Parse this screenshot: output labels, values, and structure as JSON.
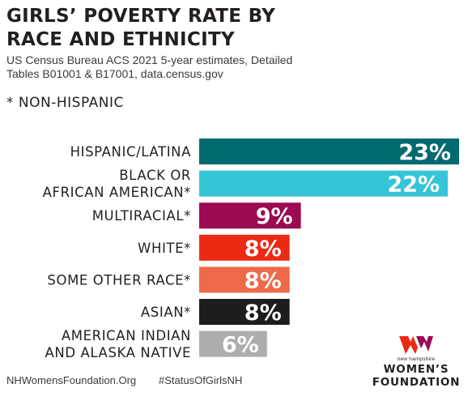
{
  "header": {
    "title_lines": [
      "GIRLS’ POVERTY RATE BY",
      "RACE AND ETHNICITY"
    ],
    "source_lines": [
      "US Census Bureau ACS 2021 5-year estimates, Detailed",
      "Tables B01001 & B17001, data.census.gov"
    ],
    "note": "* NON-HISPANIC"
  },
  "chart_data": {
    "type": "bar",
    "orientation": "horizontal",
    "title": "GIRLS’ POVERTY RATE BY RACE AND ETHNICITY",
    "subtitle": "US Census Bureau ACS 2021 5-year estimates, Detailed Tables B01001 & B17001, data.census.gov",
    "categories": [
      "HISPANIC/LATINA",
      "BLACK OR AFRICAN AMERICAN*",
      "MULTIRACIAL*",
      "WHITE*",
      "SOME OTHER RACE*",
      "ASIAN*",
      "AMERICAN INDIAN AND ALASKA NATIVE"
    ],
    "category_label_lines": [
      [
        "HISPANIC/LATINA"
      ],
      [
        "BLACK OR",
        "AFRICAN AMERICAN*"
      ],
      [
        "MULTIRACIAL*"
      ],
      [
        "WHITE*"
      ],
      [
        "SOME OTHER RACE*"
      ],
      [
        "ASIAN*"
      ],
      [
        "AMERICAN INDIAN",
        "AND ALASKA NATIVE"
      ]
    ],
    "values": [
      23,
      22,
      9,
      8,
      8,
      8,
      6
    ],
    "value_labels": [
      "23%",
      "22%",
      "9%",
      "8%",
      "8%",
      "8%",
      "6%"
    ],
    "colors": [
      "#006a6f",
      "#35c5d6",
      "#9c0a52",
      "#ec2a13",
      "#ee6a4a",
      "#1e1c1d",
      "#adadad"
    ],
    "xlim": [
      0,
      23
    ],
    "units": "%",
    "grid": false,
    "legend": "none"
  },
  "footer": {
    "website": "NHWomensFoundation.Org",
    "hashtag": "#StatusOfGirlsNH"
  },
  "logo": {
    "small_text": "new hampshire",
    "line1": "WOMEN’S",
    "line2": "FOUNDATION",
    "colors": [
      "#ec2a13",
      "#9c0a52"
    ]
  }
}
